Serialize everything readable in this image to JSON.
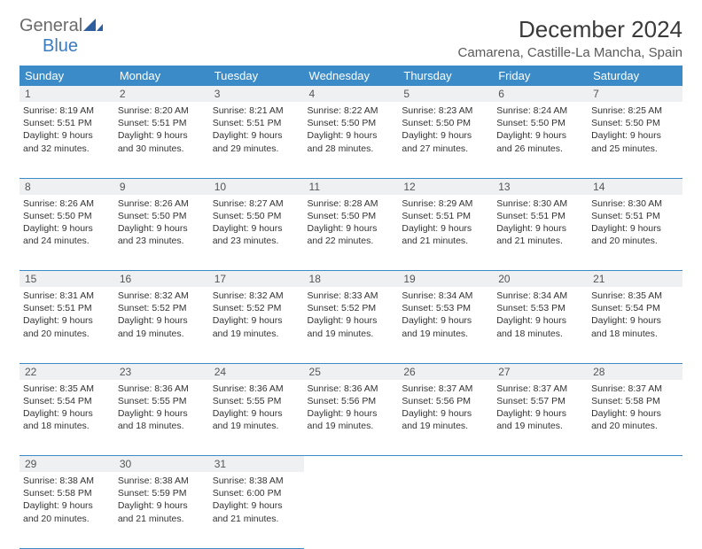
{
  "logo": {
    "part1": "General",
    "part2": "Blue"
  },
  "title": "December 2024",
  "location": "Camarena, Castille-La Mancha, Spain",
  "colors": {
    "header_bg": "#3b8bc9",
    "header_text": "#ffffff",
    "daynum_bg": "#eef0f2",
    "border": "#3b8bc9",
    "logo_gray": "#6b6b6b",
    "logo_blue": "#3b7bbf"
  },
  "weekdays": [
    "Sunday",
    "Monday",
    "Tuesday",
    "Wednesday",
    "Thursday",
    "Friday",
    "Saturday"
  ],
  "weeks": [
    {
      "nums": [
        "1",
        "2",
        "3",
        "4",
        "5",
        "6",
        "7"
      ],
      "cells": [
        {
          "sunrise": "Sunrise: 8:19 AM",
          "sunset": "Sunset: 5:51 PM",
          "day1": "Daylight: 9 hours",
          "day2": "and 32 minutes."
        },
        {
          "sunrise": "Sunrise: 8:20 AM",
          "sunset": "Sunset: 5:51 PM",
          "day1": "Daylight: 9 hours",
          "day2": "and 30 minutes."
        },
        {
          "sunrise": "Sunrise: 8:21 AM",
          "sunset": "Sunset: 5:51 PM",
          "day1": "Daylight: 9 hours",
          "day2": "and 29 minutes."
        },
        {
          "sunrise": "Sunrise: 8:22 AM",
          "sunset": "Sunset: 5:50 PM",
          "day1": "Daylight: 9 hours",
          "day2": "and 28 minutes."
        },
        {
          "sunrise": "Sunrise: 8:23 AM",
          "sunset": "Sunset: 5:50 PM",
          "day1": "Daylight: 9 hours",
          "day2": "and 27 minutes."
        },
        {
          "sunrise": "Sunrise: 8:24 AM",
          "sunset": "Sunset: 5:50 PM",
          "day1": "Daylight: 9 hours",
          "day2": "and 26 minutes."
        },
        {
          "sunrise": "Sunrise: 8:25 AM",
          "sunset": "Sunset: 5:50 PM",
          "day1": "Daylight: 9 hours",
          "day2": "and 25 minutes."
        }
      ]
    },
    {
      "nums": [
        "8",
        "9",
        "10",
        "11",
        "12",
        "13",
        "14"
      ],
      "cells": [
        {
          "sunrise": "Sunrise: 8:26 AM",
          "sunset": "Sunset: 5:50 PM",
          "day1": "Daylight: 9 hours",
          "day2": "and 24 minutes."
        },
        {
          "sunrise": "Sunrise: 8:26 AM",
          "sunset": "Sunset: 5:50 PM",
          "day1": "Daylight: 9 hours",
          "day2": "and 23 minutes."
        },
        {
          "sunrise": "Sunrise: 8:27 AM",
          "sunset": "Sunset: 5:50 PM",
          "day1": "Daylight: 9 hours",
          "day2": "and 23 minutes."
        },
        {
          "sunrise": "Sunrise: 8:28 AM",
          "sunset": "Sunset: 5:50 PM",
          "day1": "Daylight: 9 hours",
          "day2": "and 22 minutes."
        },
        {
          "sunrise": "Sunrise: 8:29 AM",
          "sunset": "Sunset: 5:51 PM",
          "day1": "Daylight: 9 hours",
          "day2": "and 21 minutes."
        },
        {
          "sunrise": "Sunrise: 8:30 AM",
          "sunset": "Sunset: 5:51 PM",
          "day1": "Daylight: 9 hours",
          "day2": "and 21 minutes."
        },
        {
          "sunrise": "Sunrise: 8:30 AM",
          "sunset": "Sunset: 5:51 PM",
          "day1": "Daylight: 9 hours",
          "day2": "and 20 minutes."
        }
      ]
    },
    {
      "nums": [
        "15",
        "16",
        "17",
        "18",
        "19",
        "20",
        "21"
      ],
      "cells": [
        {
          "sunrise": "Sunrise: 8:31 AM",
          "sunset": "Sunset: 5:51 PM",
          "day1": "Daylight: 9 hours",
          "day2": "and 20 minutes."
        },
        {
          "sunrise": "Sunrise: 8:32 AM",
          "sunset": "Sunset: 5:52 PM",
          "day1": "Daylight: 9 hours",
          "day2": "and 19 minutes."
        },
        {
          "sunrise": "Sunrise: 8:32 AM",
          "sunset": "Sunset: 5:52 PM",
          "day1": "Daylight: 9 hours",
          "day2": "and 19 minutes."
        },
        {
          "sunrise": "Sunrise: 8:33 AM",
          "sunset": "Sunset: 5:52 PM",
          "day1": "Daylight: 9 hours",
          "day2": "and 19 minutes."
        },
        {
          "sunrise": "Sunrise: 8:34 AM",
          "sunset": "Sunset: 5:53 PM",
          "day1": "Daylight: 9 hours",
          "day2": "and 19 minutes."
        },
        {
          "sunrise": "Sunrise: 8:34 AM",
          "sunset": "Sunset: 5:53 PM",
          "day1": "Daylight: 9 hours",
          "day2": "and 18 minutes."
        },
        {
          "sunrise": "Sunrise: 8:35 AM",
          "sunset": "Sunset: 5:54 PM",
          "day1": "Daylight: 9 hours",
          "day2": "and 18 minutes."
        }
      ]
    },
    {
      "nums": [
        "22",
        "23",
        "24",
        "25",
        "26",
        "27",
        "28"
      ],
      "cells": [
        {
          "sunrise": "Sunrise: 8:35 AM",
          "sunset": "Sunset: 5:54 PM",
          "day1": "Daylight: 9 hours",
          "day2": "and 18 minutes."
        },
        {
          "sunrise": "Sunrise: 8:36 AM",
          "sunset": "Sunset: 5:55 PM",
          "day1": "Daylight: 9 hours",
          "day2": "and 18 minutes."
        },
        {
          "sunrise": "Sunrise: 8:36 AM",
          "sunset": "Sunset: 5:55 PM",
          "day1": "Daylight: 9 hours",
          "day2": "and 19 minutes."
        },
        {
          "sunrise": "Sunrise: 8:36 AM",
          "sunset": "Sunset: 5:56 PM",
          "day1": "Daylight: 9 hours",
          "day2": "and 19 minutes."
        },
        {
          "sunrise": "Sunrise: 8:37 AM",
          "sunset": "Sunset: 5:56 PM",
          "day1": "Daylight: 9 hours",
          "day2": "and 19 minutes."
        },
        {
          "sunrise": "Sunrise: 8:37 AM",
          "sunset": "Sunset: 5:57 PM",
          "day1": "Daylight: 9 hours",
          "day2": "and 19 minutes."
        },
        {
          "sunrise": "Sunrise: 8:37 AM",
          "sunset": "Sunset: 5:58 PM",
          "day1": "Daylight: 9 hours",
          "day2": "and 20 minutes."
        }
      ]
    },
    {
      "nums": [
        "29",
        "30",
        "31",
        "",
        "",
        "",
        ""
      ],
      "cells": [
        {
          "sunrise": "Sunrise: 8:38 AM",
          "sunset": "Sunset: 5:58 PM",
          "day1": "Daylight: 9 hours",
          "day2": "and 20 minutes."
        },
        {
          "sunrise": "Sunrise: 8:38 AM",
          "sunset": "Sunset: 5:59 PM",
          "day1": "Daylight: 9 hours",
          "day2": "and 21 minutes."
        },
        {
          "sunrise": "Sunrise: 8:38 AM",
          "sunset": "Sunset: 6:00 PM",
          "day1": "Daylight: 9 hours",
          "day2": "and 21 minutes."
        },
        null,
        null,
        null,
        null
      ]
    }
  ]
}
